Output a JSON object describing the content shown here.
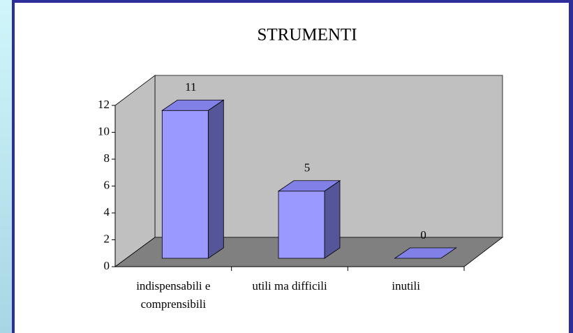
{
  "chart_data": {
    "type": "bar3d",
    "title": "STRUMENTI",
    "categories": [
      "indispensabili e comprensibili",
      "utili ma difficili",
      "inutili"
    ],
    "values": [
      11,
      5,
      0
    ],
    "color": "#9999ff",
    "ylim": [
      0,
      12
    ],
    "yticks": [
      0,
      2,
      4,
      6,
      8,
      10,
      12
    ],
    "grid": false
  }
}
